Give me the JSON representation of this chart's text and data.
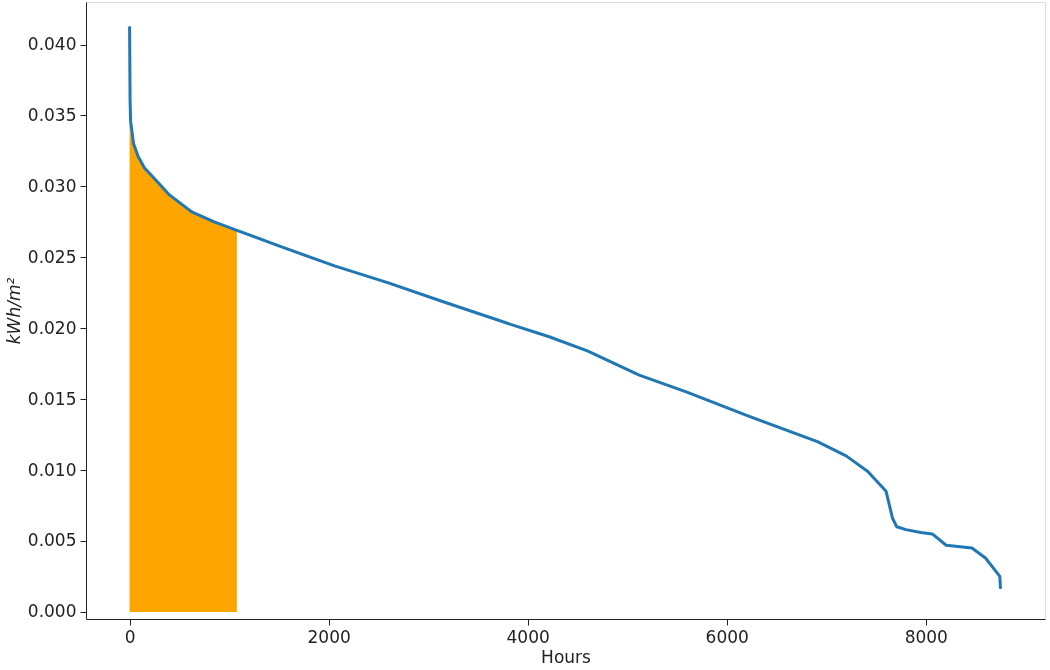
{
  "chart_data": {
    "type": "line",
    "xlabel": "Hours",
    "ylabel": "kWh/m²",
    "xlim": [
      -438,
      9198
    ],
    "ylim": [
      -0.0005,
      0.043
    ],
    "xticks": [
      0,
      2000,
      4000,
      6000,
      8000
    ],
    "yticks": [
      {
        "value": 0,
        "label": "0.000"
      },
      {
        "value": 0.005,
        "label": "0.005"
      },
      {
        "value": 0.01,
        "label": "0.010"
      },
      {
        "value": 0.015,
        "label": "0.015"
      },
      {
        "value": 0.02,
        "label": "0.020"
      },
      {
        "value": 0.025,
        "label": "0.025"
      },
      {
        "value": 0.03,
        "label": "0.030"
      },
      {
        "value": 0.035,
        "label": "0.035"
      },
      {
        "value": 0.04,
        "label": "0.040"
      }
    ],
    "grid": false,
    "marker": "none",
    "line_style": "solid",
    "series": [
      {
        "type": "area",
        "color": "#ffa500",
        "x": [
          0,
          10,
          40,
          86,
          150,
          270,
          400,
          625,
          850,
          1078
        ],
        "values": [
          0.0346,
          0.0338,
          0.033,
          0.0321,
          0.0313,
          0.0304,
          0.0294,
          0.0282,
          0.0275,
          0.0269
        ]
      },
      {
        "color": "#1f77b4",
        "x": [
          0,
          5,
          10,
          40,
          86,
          150,
          270,
          400,
          625,
          850,
          1078,
          1500,
          2059,
          2600,
          3137,
          3860,
          4216,
          4600,
          5121,
          5600,
          6200,
          6911,
          7200,
          7418,
          7601,
          7666,
          7709,
          7800,
          7950,
          8065,
          8205,
          8464,
          8600,
          8711,
          8744,
          8750
        ],
        "values": [
          0.0412,
          0.036,
          0.0346,
          0.033,
          0.0321,
          0.0313,
          0.0304,
          0.0294,
          0.0282,
          0.0275,
          0.0269,
          0.0258,
          0.0244,
          0.0232,
          0.0219,
          0.0202,
          0.0194,
          0.0184,
          0.01669,
          0.0155,
          0.01386,
          0.012,
          0.011,
          0.0099,
          0.0085,
          0.0066,
          0.006,
          0.0058,
          0.0056,
          0.0055,
          0.0047,
          0.0045,
          0.0038,
          0.0028,
          0.0025,
          0.0017
        ]
      }
    ]
  }
}
